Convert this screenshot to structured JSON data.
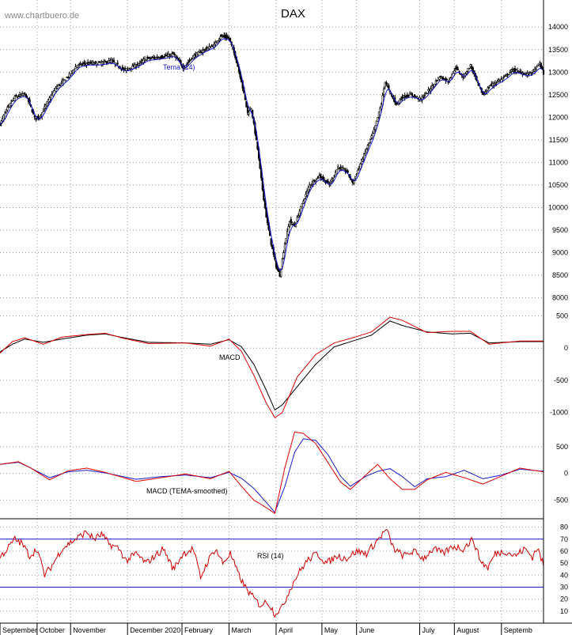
{
  "watermark": "www.chartbuero.de",
  "title": "DAX",
  "colors": {
    "grid": "#9a9a9a",
    "candle": "#000000",
    "tema": "#1a1acc",
    "macd_line": "#000000",
    "signal_line": "#dd0000",
    "rsi": "#cc0000",
    "rsi_bands": "#1a1acc",
    "divider": "#000000"
  },
  "chart_data": [
    {
      "type": "candlestick",
      "title": "DAX",
      "overlay_label": "Tema (14)",
      "ylim": [
        8000,
        14000
      ],
      "yticks": [
        8000,
        8500,
        9000,
        9500,
        10000,
        10500,
        11000,
        11500,
        12000,
        12500,
        13000,
        13500,
        14000
      ],
      "grid": true,
      "x_months": [
        "September",
        "October",
        "November",
        "December 2020",
        "February",
        "March",
        "April",
        "May",
        "June",
        "July",
        "August",
        "Septemb"
      ],
      "close_keypoints": [
        [
          0,
          11850
        ],
        [
          6,
          12200
        ],
        [
          12,
          12450
        ],
        [
          20,
          12520
        ],
        [
          24,
          12300
        ],
        [
          28,
          11980
        ],
        [
          32,
          12000
        ],
        [
          38,
          12320
        ],
        [
          45,
          12650
        ],
        [
          55,
          12900
        ],
        [
          62,
          13150
        ],
        [
          70,
          13200
        ],
        [
          80,
          13200
        ],
        [
          90,
          13250
        ],
        [
          100,
          13050
        ],
        [
          110,
          13150
        ],
        [
          118,
          13300
        ],
        [
          125,
          13320
        ],
        [
          133,
          13350
        ],
        [
          140,
          13400
        ],
        [
          148,
          13100
        ],
        [
          156,
          13350
        ],
        [
          165,
          13500
        ],
        [
          173,
          13600
        ],
        [
          178,
          13800
        ],
        [
          185,
          13750
        ],
        [
          190,
          13350
        ],
        [
          195,
          12800
        ],
        [
          200,
          12100
        ],
        [
          203,
          12200
        ],
        [
          208,
          11300
        ],
        [
          212,
          10400
        ],
        [
          215,
          9800
        ],
        [
          219,
          9200
        ],
        [
          223,
          8700
        ],
        [
          226,
          8500
        ],
        [
          230,
          9200
        ],
        [
          234,
          9700
        ],
        [
          238,
          9600
        ],
        [
          243,
          10000
        ],
        [
          250,
          10500
        ],
        [
          258,
          10700
        ],
        [
          266,
          10500
        ],
        [
          273,
          10900
        ],
        [
          280,
          10800
        ],
        [
          285,
          10550
        ],
        [
          290,
          10900
        ],
        [
          296,
          11300
        ],
        [
          302,
          11700
        ],
        [
          308,
          12300
        ],
        [
          311,
          12800
        ],
        [
          315,
          12550
        ],
        [
          320,
          12300
        ],
        [
          325,
          12450
        ],
        [
          332,
          12500
        ],
        [
          340,
          12400
        ],
        [
          348,
          12650
        ],
        [
          355,
          12900
        ],
        [
          362,
          12800
        ],
        [
          368,
          13100
        ],
        [
          374,
          12900
        ],
        [
          380,
          13150
        ],
        [
          385,
          12800
        ],
        [
          390,
          12500
        ],
        [
          396,
          12700
        ],
        [
          402,
          12800
        ],
        [
          408,
          12900
        ],
        [
          414,
          13050
        ],
        [
          420,
          13000
        ],
        [
          426,
          12950
        ],
        [
          432,
          13050
        ],
        [
          436,
          13200
        ],
        [
          439,
          12950
        ]
      ],
      "tema_offset_points": -40
    },
    {
      "type": "line",
      "label": "MACD",
      "ylim": [
        -1000,
        500
      ],
      "yticks": [
        -1000,
        -500,
        0,
        500
      ],
      "grid": true,
      "series": [
        {
          "role": "macd",
          "keypoints": [
            [
              0,
              -60
            ],
            [
              10,
              60
            ],
            [
              20,
              140
            ],
            [
              35,
              90
            ],
            [
              50,
              140
            ],
            [
              70,
              200
            ],
            [
              85,
              220
            ],
            [
              100,
              160
            ],
            [
              120,
              90
            ],
            [
              150,
              80
            ],
            [
              170,
              60
            ],
            [
              185,
              130
            ],
            [
              195,
              20
            ],
            [
              205,
              -250
            ],
            [
              215,
              -650
            ],
            [
              222,
              -960
            ],
            [
              228,
              -880
            ],
            [
              240,
              -600
            ],
            [
              255,
              -250
            ],
            [
              270,
              20
            ],
            [
              285,
              110
            ],
            [
              300,
              200
            ],
            [
              315,
              420
            ],
            [
              325,
              350
            ],
            [
              345,
              250
            ],
            [
              365,
              220
            ],
            [
              380,
              230
            ],
            [
              395,
              80
            ],
            [
              420,
              100
            ],
            [
              439,
              100
            ]
          ]
        },
        {
          "role": "signal",
          "keypoints": [
            [
              0,
              -80
            ],
            [
              10,
              100
            ],
            [
              20,
              160
            ],
            [
              35,
              60
            ],
            [
              50,
              170
            ],
            [
              70,
              210
            ],
            [
              85,
              230
            ],
            [
              100,
              150
            ],
            [
              120,
              70
            ],
            [
              150,
              80
            ],
            [
              170,
              30
            ],
            [
              185,
              140
            ],
            [
              195,
              -50
            ],
            [
              205,
              -420
            ],
            [
              215,
              -850
            ],
            [
              222,
              -1080
            ],
            [
              228,
              -1000
            ],
            [
              240,
              -450
            ],
            [
              255,
              -100
            ],
            [
              270,
              80
            ],
            [
              285,
              160
            ],
            [
              300,
              250
            ],
            [
              315,
              480
            ],
            [
              325,
              430
            ],
            [
              345,
              240
            ],
            [
              365,
              260
            ],
            [
              380,
              260
            ],
            [
              395,
              60
            ],
            [
              420,
              110
            ],
            [
              439,
              110
            ]
          ]
        }
      ]
    },
    {
      "type": "line",
      "label": "MACD (TEMA-smoothed)",
      "ylim": [
        -850,
        900
      ],
      "yticks": [
        -500,
        0,
        500
      ],
      "grid": true,
      "series": [
        {
          "role": "macd",
          "keypoints": [
            [
              0,
              170
            ],
            [
              15,
              210
            ],
            [
              25,
              100
            ],
            [
              40,
              -80
            ],
            [
              55,
              30
            ],
            [
              70,
              60
            ],
            [
              85,
              10
            ],
            [
              110,
              -110
            ],
            [
              130,
              -60
            ],
            [
              150,
              -30
            ],
            [
              170,
              -80
            ],
            [
              185,
              20
            ],
            [
              195,
              -90
            ],
            [
              205,
              -280
            ],
            [
              213,
              -490
            ],
            [
              222,
              -730
            ],
            [
              230,
              -250
            ],
            [
              238,
              400
            ],
            [
              245,
              650
            ],
            [
              255,
              620
            ],
            [
              265,
              350
            ],
            [
              275,
              -50
            ],
            [
              283,
              -240
            ],
            [
              295,
              -60
            ],
            [
              305,
              40
            ],
            [
              315,
              90
            ],
            [
              325,
              -60
            ],
            [
              335,
              -250
            ],
            [
              345,
              -100
            ],
            [
              360,
              -60
            ],
            [
              375,
              60
            ],
            [
              390,
              -100
            ],
            [
              405,
              -30
            ],
            [
              420,
              80
            ],
            [
              439,
              40
            ]
          ]
        },
        {
          "role": "signal",
          "keypoints": [
            [
              0,
              170
            ],
            [
              15,
              220
            ],
            [
              25,
              100
            ],
            [
              40,
              -120
            ],
            [
              55,
              50
            ],
            [
              70,
              100
            ],
            [
              85,
              20
            ],
            [
              110,
              -150
            ],
            [
              130,
              -80
            ],
            [
              150,
              -10
            ],
            [
              170,
              -100
            ],
            [
              185,
              40
            ],
            [
              195,
              -240
            ],
            [
              205,
              -500
            ],
            [
              213,
              -610
            ],
            [
              222,
              -750
            ],
            [
              230,
              100
            ],
            [
              238,
              780
            ],
            [
              245,
              750
            ],
            [
              255,
              560
            ],
            [
              265,
              200
            ],
            [
              275,
              -160
            ],
            [
              283,
              -300
            ],
            [
              295,
              -40
            ],
            [
              305,
              170
            ],
            [
              315,
              -100
            ],
            [
              325,
              -300
            ],
            [
              335,
              -300
            ],
            [
              345,
              -120
            ],
            [
              360,
              20
            ],
            [
              375,
              -80
            ],
            [
              390,
              -200
            ],
            [
              405,
              -50
            ],
            [
              420,
              100
            ],
            [
              439,
              30
            ]
          ]
        }
      ]
    },
    {
      "type": "line",
      "label": "RSI (14)",
      "ylim": [
        0,
        87
      ],
      "yticks": [
        10,
        20,
        30,
        40,
        50,
        60,
        70,
        80
      ],
      "bands": [
        30,
        70
      ],
      "grid": true,
      "series": [
        {
          "role": "rsi",
          "keypoints": [
            [
              0,
              55
            ],
            [
              6,
              62
            ],
            [
              12,
              70
            ],
            [
              18,
              66
            ],
            [
              24,
              56
            ],
            [
              30,
              62
            ],
            [
              36,
              40
            ],
            [
              42,
              48
            ],
            [
              50,
              62
            ],
            [
              58,
              68
            ],
            [
              64,
              72
            ],
            [
              70,
              76
            ],
            [
              76,
              70
            ],
            [
              82,
              74
            ],
            [
              88,
              66
            ],
            [
              96,
              62
            ],
            [
              102,
              52
            ],
            [
              110,
              58
            ],
            [
              118,
              50
            ],
            [
              124,
              55
            ],
            [
              132,
              62
            ],
            [
              140,
              45
            ],
            [
              148,
              58
            ],
            [
              156,
              62
            ],
            [
              162,
              38
            ],
            [
              168,
              52
            ],
            [
              174,
              62
            ],
            [
              180,
              50
            ],
            [
              186,
              58
            ],
            [
              192,
              42
            ],
            [
              198,
              30
            ],
            [
              204,
              22
            ],
            [
              210,
              15
            ],
            [
              216,
              18
            ],
            [
              222,
              8
            ],
            [
              228,
              13
            ],
            [
              234,
              28
            ],
            [
              240,
              40
            ],
            [
              248,
              52
            ],
            [
              256,
              58
            ],
            [
              264,
              50
            ],
            [
              272,
              56
            ],
            [
              280,
              54
            ],
            [
              288,
              60
            ],
            [
              296,
              58
            ],
            [
              304,
              68
            ],
            [
              312,
              78
            ],
            [
              318,
              62
            ],
            [
              326,
              56
            ],
            [
              334,
              60
            ],
            [
              342,
              54
            ],
            [
              350,
              62
            ],
            [
              358,
              58
            ],
            [
              366,
              64
            ],
            [
              374,
              62
            ],
            [
              382,
              70
            ],
            [
              388,
              52
            ],
            [
              394,
              46
            ],
            [
              400,
              58
            ],
            [
              408,
              60
            ],
            [
              416,
              56
            ],
            [
              424,
              62
            ],
            [
              430,
              55
            ],
            [
              434,
              63
            ],
            [
              439,
              48
            ]
          ]
        }
      ]
    }
  ]
}
